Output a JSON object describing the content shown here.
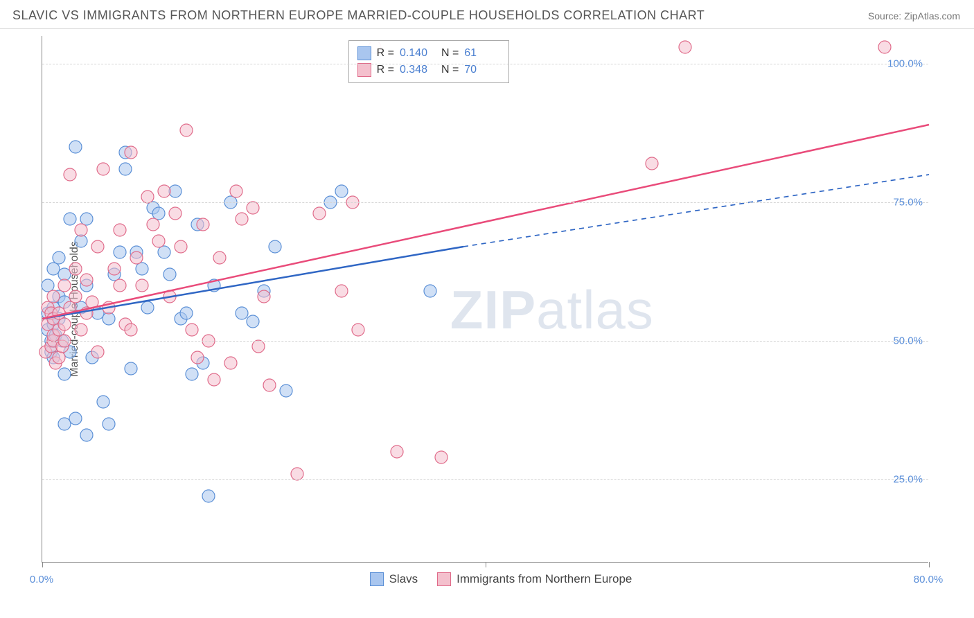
{
  "title": "SLAVIC VS IMMIGRANTS FROM NORTHERN EUROPE MARRIED-COUPLE HOUSEHOLDS CORRELATION CHART",
  "source": "Source: ZipAtlas.com",
  "y_axis_label": "Married-couple Households",
  "watermark": {
    "part1": "ZIP",
    "part2": "atlas"
  },
  "chart": {
    "type": "scatter",
    "background_color": "#ffffff",
    "grid_color": "#d5d5d5",
    "axis_color": "#888888",
    "xlim": [
      0,
      80
    ],
    "ylim": [
      10,
      105
    ],
    "x_ticks": [
      {
        "value": 0,
        "label": "0.0%"
      },
      {
        "value": 40,
        "label": ""
      },
      {
        "value": 80,
        "label": "80.0%"
      }
    ],
    "y_ticks": [
      {
        "value": 25,
        "label": "25.0%"
      },
      {
        "value": 50,
        "label": "50.0%"
      },
      {
        "value": 75,
        "label": "75.0%"
      },
      {
        "value": 100,
        "label": "100.0%"
      }
    ],
    "tick_label_color": "#5b8fd9",
    "tick_fontsize": 15,
    "marker_radius": 9,
    "marker_opacity": 0.55,
    "line_width": 2.5,
    "series": [
      {
        "name": "Slavs",
        "color_fill": "#a9c6ef",
        "color_stroke": "#5a8fd6",
        "line_color": "#2f66c4",
        "r_value": "0.140",
        "n_value": "61",
        "regression": {
          "x1": 0,
          "y1": 54,
          "x2_solid": 38,
          "y2_solid": 67,
          "x2_dash": 80,
          "y2_dash": 80
        },
        "points": [
          [
            0.5,
            52
          ],
          [
            0.5,
            55
          ],
          [
            0.5,
            60
          ],
          [
            0.8,
            48
          ],
          [
            0.8,
            50
          ],
          [
            1,
            47
          ],
          [
            1,
            53
          ],
          [
            1,
            56
          ],
          [
            1,
            63
          ],
          [
            1.2,
            51
          ],
          [
            1.5,
            54
          ],
          [
            1.5,
            58
          ],
          [
            1.5,
            65
          ],
          [
            1.8,
            50
          ],
          [
            2,
            35
          ],
          [
            2,
            44
          ],
          [
            2,
            57
          ],
          [
            2,
            62
          ],
          [
            2.5,
            48
          ],
          [
            2.5,
            72
          ],
          [
            3,
            36
          ],
          [
            3,
            85
          ],
          [
            3.5,
            56
          ],
          [
            3.5,
            68
          ],
          [
            4,
            33
          ],
          [
            4,
            60
          ],
          [
            4,
            72
          ],
          [
            4.5,
            47
          ],
          [
            5,
            55
          ],
          [
            5.5,
            39
          ],
          [
            6,
            35
          ],
          [
            6,
            54
          ],
          [
            6.5,
            62
          ],
          [
            7,
            66
          ],
          [
            7.5,
            81
          ],
          [
            7.5,
            84
          ],
          [
            8,
            45
          ],
          [
            8.5,
            66
          ],
          [
            9,
            63
          ],
          [
            9.5,
            56
          ],
          [
            10,
            74
          ],
          [
            10.5,
            73
          ],
          [
            11,
            66
          ],
          [
            11.5,
            62
          ],
          [
            12,
            77
          ],
          [
            12.5,
            54
          ],
          [
            13,
            55
          ],
          [
            13.5,
            44
          ],
          [
            14,
            71
          ],
          [
            14.5,
            46
          ],
          [
            15,
            22
          ],
          [
            15.5,
            60
          ],
          [
            17,
            75
          ],
          [
            18,
            55
          ],
          [
            19,
            53.5
          ],
          [
            20,
            59
          ],
          [
            21,
            67
          ],
          [
            22,
            41
          ],
          [
            26,
            75
          ],
          [
            27,
            77
          ],
          [
            35,
            59
          ]
        ]
      },
      {
        "name": "Immigrants from Northern Europe",
        "color_fill": "#f4c0cd",
        "color_stroke": "#e06b8a",
        "line_color": "#e94b7a",
        "r_value": "0.348",
        "n_value": "70",
        "regression": {
          "x1": 0,
          "y1": 54,
          "x2_solid": 80,
          "y2_solid": 89,
          "x2_dash": 80,
          "y2_dash": 89
        },
        "points": [
          [
            0.3,
            48
          ],
          [
            0.5,
            53
          ],
          [
            0.5,
            56
          ],
          [
            0.8,
            49
          ],
          [
            0.8,
            55
          ],
          [
            1,
            50
          ],
          [
            1,
            51
          ],
          [
            1,
            54
          ],
          [
            1,
            58
          ],
          [
            1.2,
            46
          ],
          [
            1.5,
            52
          ],
          [
            1.5,
            55
          ],
          [
            1.5,
            47
          ],
          [
            1.8,
            49
          ],
          [
            2,
            53
          ],
          [
            2,
            50
          ],
          [
            2,
            60
          ],
          [
            2.5,
            56
          ],
          [
            2.5,
            80
          ],
          [
            3,
            58
          ],
          [
            3,
            63
          ],
          [
            3.5,
            52
          ],
          [
            3.5,
            70
          ],
          [
            4,
            55
          ],
          [
            4,
            61
          ],
          [
            4.5,
            57
          ],
          [
            5,
            48
          ],
          [
            5,
            67
          ],
          [
            5.5,
            81
          ],
          [
            6,
            56
          ],
          [
            6.5,
            63
          ],
          [
            7,
            60
          ],
          [
            7,
            70
          ],
          [
            7.5,
            53
          ],
          [
            8,
            52
          ],
          [
            8,
            84
          ],
          [
            8.5,
            65
          ],
          [
            9,
            60
          ],
          [
            9.5,
            76
          ],
          [
            10,
            71
          ],
          [
            10.5,
            68
          ],
          [
            11,
            77
          ],
          [
            11.5,
            58
          ],
          [
            12,
            73
          ],
          [
            12.5,
            67
          ],
          [
            13,
            88
          ],
          [
            13.5,
            52
          ],
          [
            14,
            47
          ],
          [
            14.5,
            71
          ],
          [
            15,
            50
          ],
          [
            15.5,
            43
          ],
          [
            16,
            65
          ],
          [
            17,
            46
          ],
          [
            17.5,
            77
          ],
          [
            18,
            72
          ],
          [
            19,
            74
          ],
          [
            19.5,
            49
          ],
          [
            20,
            58
          ],
          [
            20.5,
            42
          ],
          [
            23,
            26
          ],
          [
            25,
            73
          ],
          [
            27,
            59
          ],
          [
            28,
            75
          ],
          [
            28.5,
            52
          ],
          [
            30,
            103
          ],
          [
            32,
            30
          ],
          [
            36,
            29
          ],
          [
            55,
            82
          ],
          [
            58,
            103
          ],
          [
            76,
            103
          ]
        ]
      }
    ]
  },
  "legend_top": {
    "r_label": "R =",
    "n_label": "N ="
  },
  "legend_bottom": {
    "items": [
      "Slavs",
      "Immigrants from Northern Europe"
    ]
  }
}
